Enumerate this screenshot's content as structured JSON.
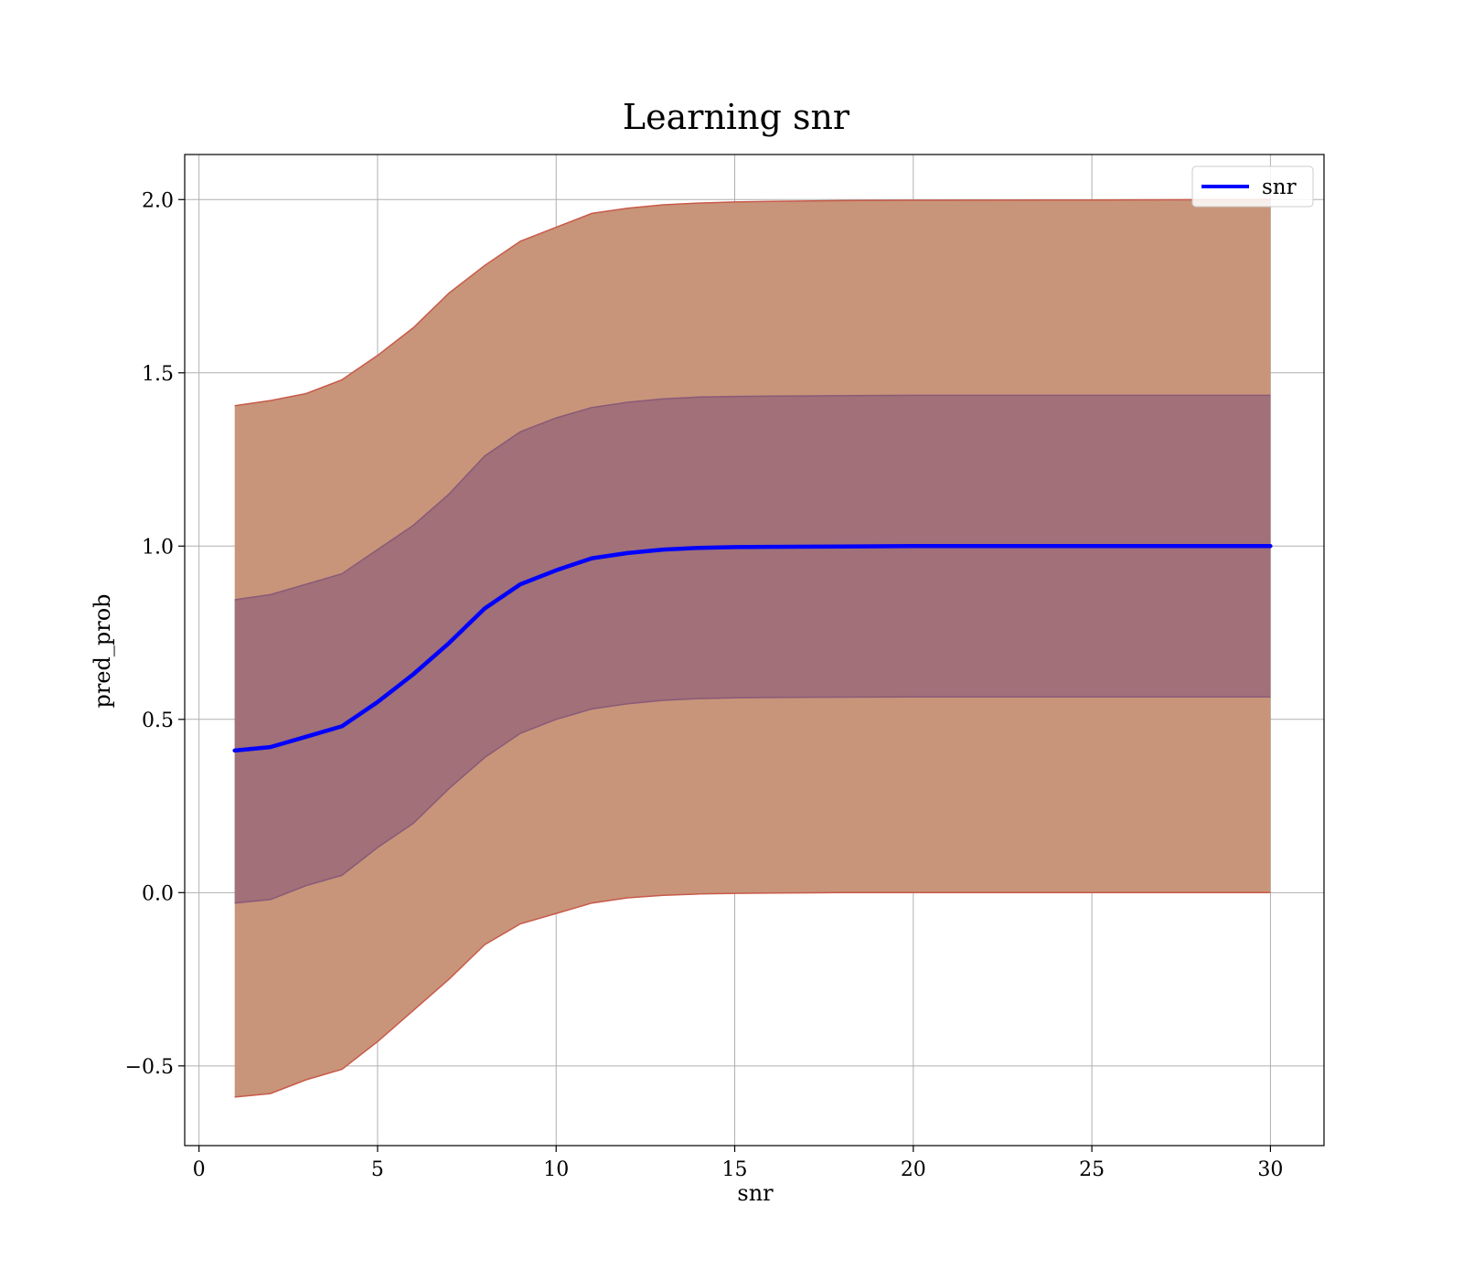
{
  "chart_data": {
    "type": "area",
    "title": "Learning snr",
    "xlabel": "snr",
    "ylabel": "pred_prob",
    "xlim": [
      -0.4,
      31.5
    ],
    "ylim": [
      -0.73,
      2.13
    ],
    "xticks": [
      0,
      5,
      10,
      15,
      20,
      25,
      30
    ],
    "yticks": [
      -0.5,
      0.0,
      0.5,
      1.0,
      1.5,
      2.0
    ],
    "xtick_labels": [
      "0",
      "5",
      "10",
      "15",
      "20",
      "25",
      "30"
    ],
    "ytick_labels": [
      "−0.5",
      "0.0",
      "0.5",
      "1.0",
      "1.5",
      "2.0"
    ],
    "grid": true,
    "legend": {
      "position": "top-right",
      "entries": [
        "snr"
      ]
    },
    "colors": {
      "line": "#0000ff",
      "outer_band": "#c8957a",
      "inner_band": "#a17078",
      "outer_edge": "#c85a4a",
      "inner_edge": "#8a5a78",
      "grid": "#b0b0b0"
    },
    "x": [
      1,
      2,
      3,
      4,
      5,
      6,
      7,
      8,
      9,
      10,
      11,
      12,
      13,
      14,
      15,
      16,
      18,
      20,
      25,
      30
    ],
    "series": [
      {
        "name": "snr",
        "mean": [
          0.41,
          0.42,
          0.45,
          0.48,
          0.55,
          0.63,
          0.72,
          0.82,
          0.89,
          0.93,
          0.965,
          0.98,
          0.99,
          0.995,
          0.997,
          0.998,
          0.999,
          1.0,
          1.0,
          1.0
        ],
        "inner_band": {
          "lower": [
            -0.03,
            -0.02,
            0.02,
            0.05,
            0.13,
            0.2,
            0.3,
            0.39,
            0.46,
            0.5,
            0.53,
            0.545,
            0.555,
            0.56,
            0.562,
            0.563,
            0.564,
            0.565,
            0.565,
            0.565
          ],
          "upper": [
            0.845,
            0.86,
            0.89,
            0.92,
            0.99,
            1.06,
            1.15,
            1.26,
            1.33,
            1.37,
            1.4,
            1.415,
            1.425,
            1.43,
            1.432,
            1.433,
            1.434,
            1.435,
            1.435,
            1.435
          ]
        },
        "outer_band": {
          "lower": [
            -0.59,
            -0.58,
            -0.54,
            -0.51,
            -0.43,
            -0.34,
            -0.25,
            -0.15,
            -0.09,
            -0.06,
            -0.03,
            -0.015,
            -0.008,
            -0.004,
            -0.002,
            -0.001,
            0.0,
            0.0,
            0.0,
            0.0
          ],
          "upper": [
            1.405,
            1.42,
            1.44,
            1.48,
            1.55,
            1.63,
            1.73,
            1.81,
            1.88,
            1.92,
            1.96,
            1.975,
            1.985,
            1.99,
            1.993,
            1.995,
            1.997,
            1.998,
            1.999,
            2.0
          ]
        }
      }
    ]
  }
}
